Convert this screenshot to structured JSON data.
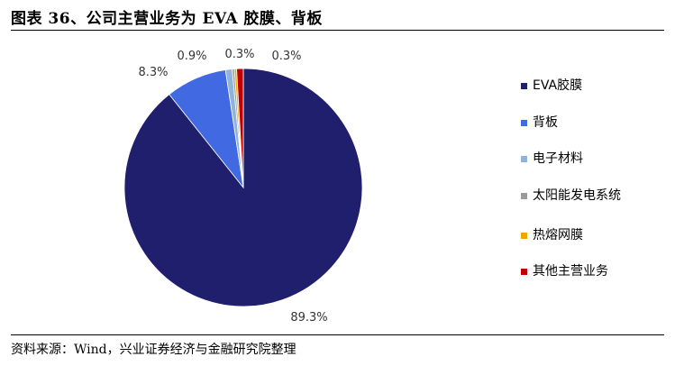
{
  "page": {
    "title": "图表 36、公司主营业务为 EVA 胶膜、背板",
    "source": "资料来源：Wind，兴业证券经济与金融研究院整理"
  },
  "chart_data": {
    "type": "pie",
    "title": "",
    "categories": [
      "EVA胶膜",
      "背板",
      "电子材料",
      "太阳能发电系统",
      "热熔网膜",
      "其他主营业务"
    ],
    "values": [
      89.3,
      8.3,
      0.9,
      0.3,
      0.3,
      0.9
    ],
    "value_labels": [
      "89.3%",
      "8.3%",
      "0.9%",
      "0.3%",
      "0.3%",
      ""
    ],
    "colors": [
      "#1f1f6e",
      "#4169e1",
      "#8fb3d9",
      "#9a9a9a",
      "#f0a500",
      "#c00000"
    ],
    "legend": "right",
    "start": "top",
    "direction": "clockwise"
  }
}
